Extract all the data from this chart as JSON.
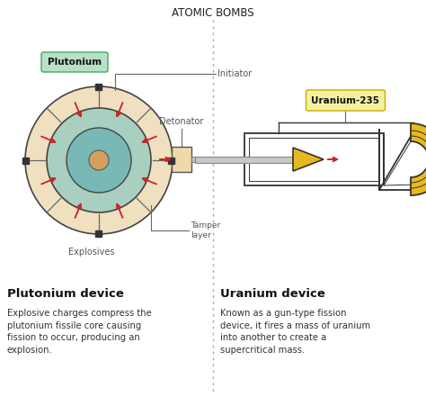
{
  "title": "ATOMIC BOMBS",
  "bg_color": "#ffffff",
  "divider_color": "#aaaaaa",
  "left_label_bold": "Plutonium device",
  "left_desc": "Explosive charges compress the\nplutonium fissile core causing\nfission to occur, producing an\nexplosion.",
  "right_label_bold": "Uranium device",
  "right_desc": "Known as a gun-type fission\ndevice, it fires a mass of uranium\ninto another to create a\nsupercritical mass.",
  "plutonium_box_color": "#b8e0c8",
  "plutonium_box_text": "Plutonium",
  "uranium_box_color": "#f5f0a0",
  "uranium_box_text": "Uranium-235",
  "explosive_color": "#f0e0c0",
  "tamper_color": "#a8cfc0",
  "inner_core_color": "#7ab8b8",
  "core_color": "#d4a060",
  "arrow_color": "#cc2222",
  "gun_yellow": "#e8b820",
  "gun_outline": "#333333",
  "detonator_box_color": "#f0d8a8",
  "text_color": "#222222",
  "label_color": "#555555"
}
